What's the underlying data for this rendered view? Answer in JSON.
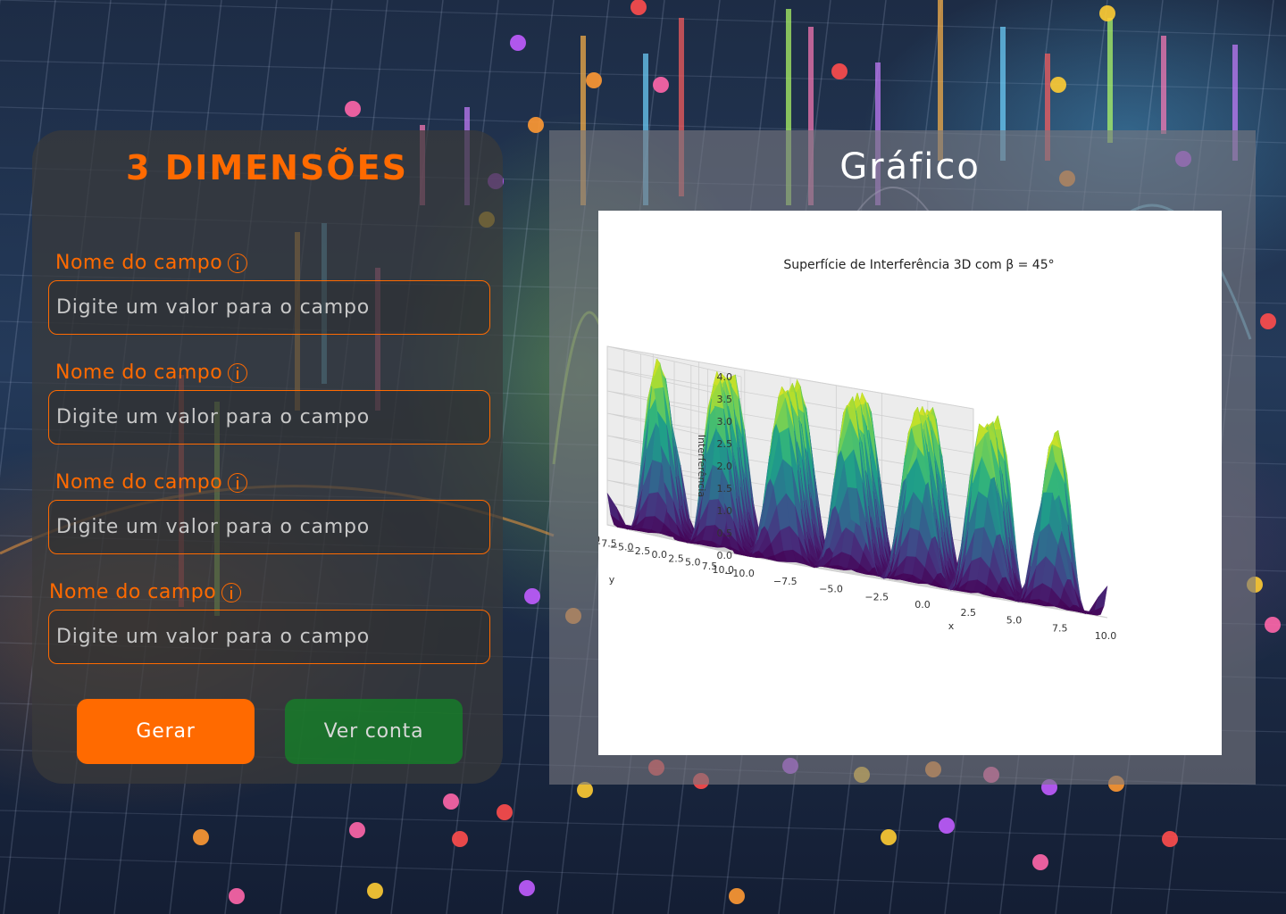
{
  "left_panel": {
    "title": "3 DIMENSÕES",
    "fields": [
      {
        "label": "Nome do campo",
        "placeholder": "Digite um valor para o campo",
        "value": ""
      },
      {
        "label": "Nome do campo",
        "placeholder": "Digite um valor para o campo",
        "value": ""
      },
      {
        "label": "Nome do campo",
        "placeholder": "Digite um valor para o campo",
        "value": ""
      },
      {
        "label": "Nome do campo",
        "placeholder": "Digite um valor para o campo",
        "value": ""
      }
    ],
    "buttons": {
      "generate": "Gerar",
      "view_account": "Ver conta"
    },
    "accent_color": "#ff6a00",
    "secondary_button_color": "#14822a"
  },
  "right_panel": {
    "title": "Gráfico"
  },
  "chart_data": {
    "type": "surface3d",
    "title": "Superfície de Interferência 3D com β = 45°",
    "xlabel": "x",
    "ylabel": "y",
    "zlabel": "Interferência",
    "xlim": [
      -10,
      10
    ],
    "ylim": [
      -10,
      10
    ],
    "zlim": [
      0,
      4
    ],
    "x_ticks": [
      "−10.0",
      "−7.5",
      "−5.0",
      "−2.5",
      "0.0",
      "2.5",
      "5.0",
      "7.5",
      "10.0"
    ],
    "y_ticks": [
      "10.0",
      "7.5",
      "5.0",
      "2.5",
      "0.0",
      "−2.5",
      "−5.0",
      "−7.5",
      "−10.0"
    ],
    "z_ticks": [
      "0.0",
      "0.5",
      "1.0",
      "1.5",
      "2.0",
      "2.5",
      "3.0",
      "3.5",
      "4.0"
    ],
    "colormap": "viridis",
    "beta_degrees": 45,
    "grid": true
  }
}
